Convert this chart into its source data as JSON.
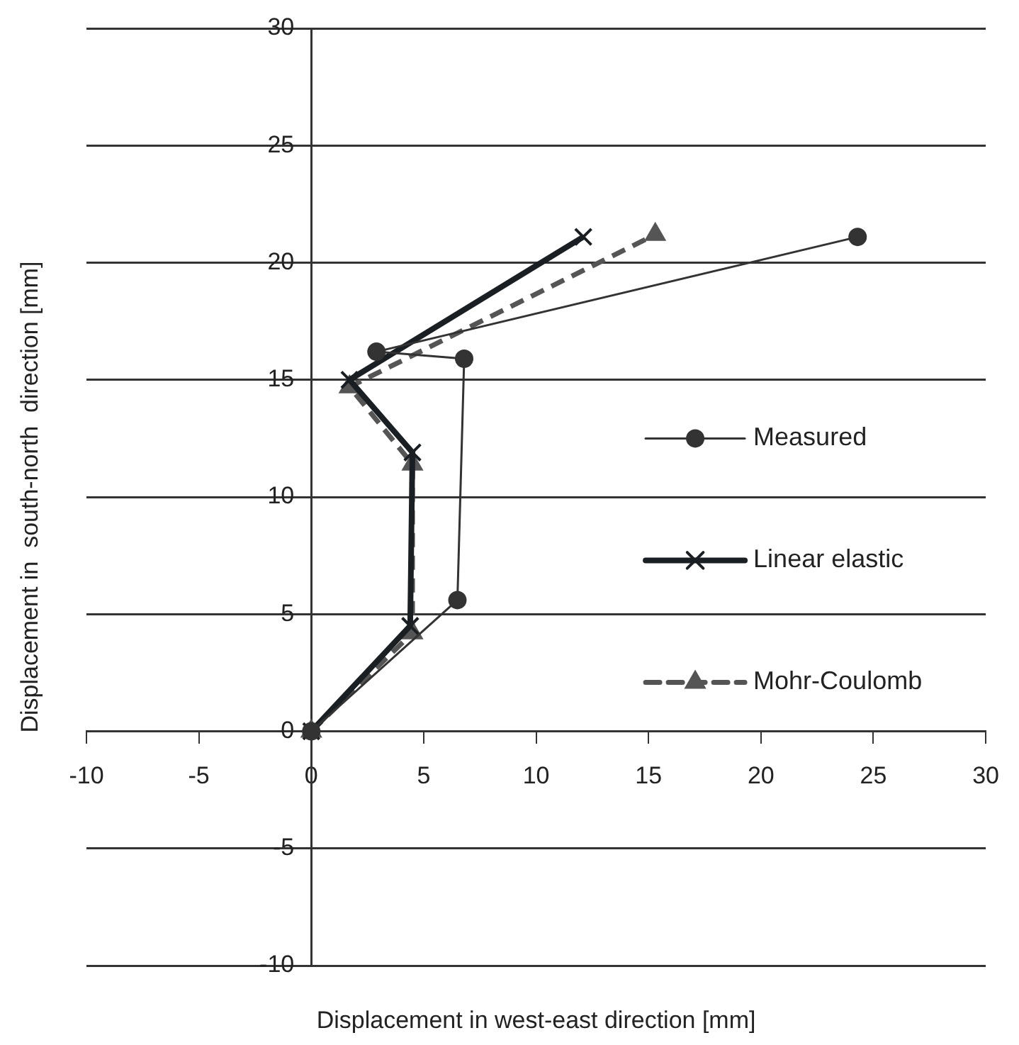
{
  "chart_data": {
    "type": "line",
    "xlabel": "Displacement in west-east direction [mm]",
    "ylabel": "Displacement in  south-north  direction [mm]",
    "xlim": [
      -10,
      30
    ],
    "ylim": [
      -10,
      30
    ],
    "xticks": [
      -10,
      -5,
      0,
      5,
      10,
      15,
      20,
      25,
      30
    ],
    "yticks": [
      -10,
      -5,
      0,
      5,
      10,
      15,
      20,
      25,
      30
    ],
    "grid": "y",
    "legend": "right",
    "series": [
      {
        "name": "Measured",
        "color": "#333333",
        "marker": "circle",
        "line_style": "solid",
        "x": [
          0,
          6.5,
          6.8,
          2.9,
          24.3
        ],
        "values": [
          0,
          5.6,
          15.9,
          16.2,
          21.1
        ]
      },
      {
        "name": "Linear elastic",
        "color": "#1a1f24",
        "marker": "cross",
        "line_style": "solid",
        "x": [
          0,
          4.4,
          4.5,
          1.7,
          12.1
        ],
        "values": [
          0,
          4.5,
          11.9,
          15.0,
          21.1
        ]
      },
      {
        "name": "Mohr-Coulomb",
        "color": "#555555",
        "marker": "triangle",
        "line_style": "dashed",
        "x": [
          0,
          4.5,
          4.5,
          1.7,
          15.3
        ],
        "values": [
          0,
          4.2,
          11.4,
          14.7,
          21.2
        ]
      }
    ]
  }
}
